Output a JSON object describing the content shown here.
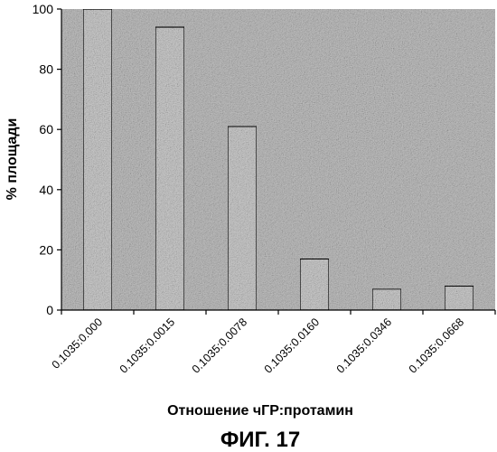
{
  "chart_data": {
    "type": "bar",
    "categories": [
      "0.1035:0.000",
      "0.1035:0.0015",
      "0.1035:0.0078",
      "0.1035:0.0160",
      "0.1035:0.0346",
      "0.1035:0.0668"
    ],
    "values": [
      100,
      94,
      61,
      17,
      7,
      8
    ],
    "title": "",
    "xlabel": "Отношение чГР:протамин",
    "ylabel": "% площади",
    "ylim": [
      0,
      100
    ],
    "yticks": [
      0,
      20,
      40,
      60,
      80,
      100
    ],
    "grid": false,
    "legend": "none"
  },
  "figure": {
    "caption": "ФИГ. 17"
  },
  "colors": {
    "plot_background": "#bdbdbd",
    "bar_fill": "#c9c9c9",
    "bar_stroke": "#000000"
  }
}
